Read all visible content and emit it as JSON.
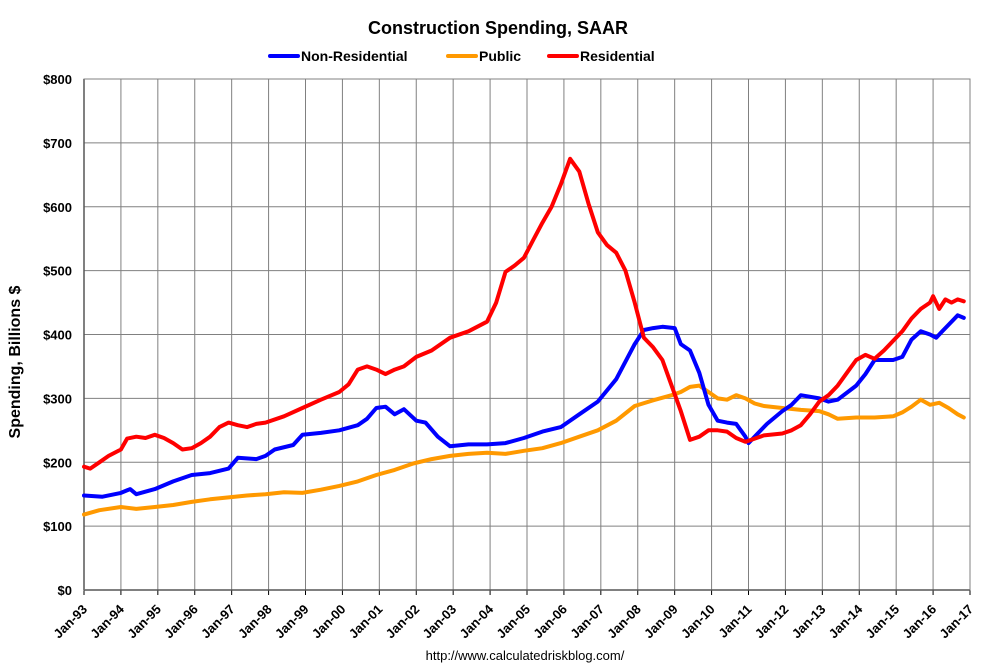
{
  "chart_data": {
    "type": "line",
    "title": "Construction Spending, SAAR",
    "xlabel": "",
    "ylabel": "Spending, Billions $",
    "source": "http://www.calculatedriskblog.com/",
    "x_range": [
      "1993-01",
      "2017-01"
    ],
    "ylim": [
      0,
      800
    ],
    "y_ticks": [
      "$0",
      "$100",
      "$200",
      "$300",
      "$400",
      "$500",
      "$600",
      "$700",
      "$800"
    ],
    "y_tick_values": [
      0,
      100,
      200,
      300,
      400,
      500,
      600,
      700,
      800
    ],
    "x_ticks": [
      "Jan-93",
      "Jan-94",
      "Jan-95",
      "Jan-96",
      "Jan-97",
      "Jan-98",
      "Jan-99",
      "Jan-00",
      "Jan-01",
      "Jan-02",
      "Jan-03",
      "Jan-04",
      "Jan-05",
      "Jan-06",
      "Jan-07",
      "Jan-08",
      "Jan-09",
      "Jan-10",
      "Jan-11",
      "Jan-12",
      "Jan-13",
      "Jan-14",
      "Jan-15",
      "Jan-16",
      "Jan-17"
    ],
    "grid": true,
    "legend": "top-center",
    "series": [
      {
        "name": "Non-Residential",
        "color": "#0000ff",
        "points": [
          [
            "1993-01",
            148
          ],
          [
            "1993-07",
            146
          ],
          [
            "1994-01",
            152
          ],
          [
            "1994-04",
            158
          ],
          [
            "1994-06",
            150
          ],
          [
            "1994-12",
            158
          ],
          [
            "1995-06",
            170
          ],
          [
            "1995-12",
            180
          ],
          [
            "1996-06",
            183
          ],
          [
            "1996-12",
            190
          ],
          [
            "1997-03",
            207
          ],
          [
            "1997-09",
            205
          ],
          [
            "1997-12",
            210
          ],
          [
            "1998-03",
            220
          ],
          [
            "1998-09",
            227
          ],
          [
            "1998-12",
            243
          ],
          [
            "1999-06",
            246
          ],
          [
            "1999-12",
            250
          ],
          [
            "2000-06",
            258
          ],
          [
            "2000-09",
            268
          ],
          [
            "2000-12",
            285
          ],
          [
            "2001-03",
            287
          ],
          [
            "2001-06",
            275
          ],
          [
            "2001-09",
            283
          ],
          [
            "2002-01",
            265
          ],
          [
            "2002-04",
            262
          ],
          [
            "2002-08",
            240
          ],
          [
            "2002-12",
            225
          ],
          [
            "2003-06",
            228
          ],
          [
            "2003-12",
            228
          ],
          [
            "2004-06",
            230
          ],
          [
            "2004-12",
            238
          ],
          [
            "2005-06",
            248
          ],
          [
            "2005-12",
            255
          ],
          [
            "2006-06",
            275
          ],
          [
            "2006-12",
            295
          ],
          [
            "2007-06",
            330
          ],
          [
            "2007-12",
            385
          ],
          [
            "2008-03",
            407
          ],
          [
            "2008-06",
            410
          ],
          [
            "2008-09",
            412
          ],
          [
            "2009-01",
            410
          ],
          [
            "2009-03",
            385
          ],
          [
            "2009-06",
            375
          ],
          [
            "2009-09",
            340
          ],
          [
            "2009-12",
            290
          ],
          [
            "2010-03",
            265
          ],
          [
            "2010-06",
            262
          ],
          [
            "2010-09",
            260
          ],
          [
            "2010-12",
            240
          ],
          [
            "2011-01",
            230
          ],
          [
            "2011-04",
            245
          ],
          [
            "2011-07",
            260
          ],
          [
            "2011-12",
            280
          ],
          [
            "2012-03",
            290
          ],
          [
            "2012-06",
            305
          ],
          [
            "2012-12",
            300
          ],
          [
            "2013-03",
            295
          ],
          [
            "2013-06",
            298
          ],
          [
            "2013-12",
            320
          ],
          [
            "2014-03",
            338
          ],
          [
            "2014-06",
            360
          ],
          [
            "2014-12",
            360
          ],
          [
            "2015-03",
            365
          ],
          [
            "2015-06",
            392
          ],
          [
            "2015-09",
            405
          ],
          [
            "2015-12",
            400
          ],
          [
            "2016-02",
            395
          ],
          [
            "2016-04",
            405
          ],
          [
            "2016-07",
            420
          ],
          [
            "2016-09",
            430
          ],
          [
            "2016-11",
            426
          ]
        ]
      },
      {
        "name": "Public",
        "color": "#ff9900",
        "points": [
          [
            "1993-01",
            118
          ],
          [
            "1993-06",
            125
          ],
          [
            "1994-01",
            130
          ],
          [
            "1994-06",
            127
          ],
          [
            "1994-12",
            130
          ],
          [
            "1995-06",
            133
          ],
          [
            "1995-12",
            138
          ],
          [
            "1996-06",
            142
          ],
          [
            "1996-12",
            145
          ],
          [
            "1997-06",
            148
          ],
          [
            "1997-12",
            150
          ],
          [
            "1998-06",
            153
          ],
          [
            "1998-12",
            152
          ],
          [
            "1999-06",
            157
          ],
          [
            "1999-12",
            163
          ],
          [
            "2000-06",
            170
          ],
          [
            "2000-12",
            180
          ],
          [
            "2001-06",
            188
          ],
          [
            "2001-12",
            198
          ],
          [
            "2002-06",
            205
          ],
          [
            "2002-12",
            210
          ],
          [
            "2003-06",
            213
          ],
          [
            "2003-12",
            215
          ],
          [
            "2004-06",
            213
          ],
          [
            "2004-12",
            218
          ],
          [
            "2005-06",
            222
          ],
          [
            "2005-12",
            230
          ],
          [
            "2006-06",
            240
          ],
          [
            "2006-12",
            250
          ],
          [
            "2007-06",
            265
          ],
          [
            "2007-12",
            288
          ],
          [
            "2008-06",
            297
          ],
          [
            "2008-12",
            305
          ],
          [
            "2009-03",
            310
          ],
          [
            "2009-06",
            318
          ],
          [
            "2009-09",
            320
          ],
          [
            "2009-12",
            310
          ],
          [
            "2010-03",
            300
          ],
          [
            "2010-06",
            298
          ],
          [
            "2010-09",
            305
          ],
          [
            "2010-12",
            300
          ],
          [
            "2011-03",
            292
          ],
          [
            "2011-06",
            288
          ],
          [
            "2011-12",
            285
          ],
          [
            "2012-06",
            282
          ],
          [
            "2012-12",
            280
          ],
          [
            "2013-03",
            275
          ],
          [
            "2013-06",
            268
          ],
          [
            "2013-12",
            270
          ],
          [
            "2014-06",
            270
          ],
          [
            "2014-12",
            272
          ],
          [
            "2015-03",
            278
          ],
          [
            "2015-06",
            287
          ],
          [
            "2015-09",
            298
          ],
          [
            "2015-12",
            290
          ],
          [
            "2016-03",
            293
          ],
          [
            "2016-06",
            285
          ],
          [
            "2016-09",
            275
          ],
          [
            "2016-11",
            270
          ]
        ]
      },
      {
        "name": "Residential",
        "color": "#ff0000",
        "points": [
          [
            "1993-01",
            193
          ],
          [
            "1993-03",
            190
          ],
          [
            "1993-06",
            200
          ],
          [
            "1993-09",
            210
          ],
          [
            "1994-01",
            220
          ],
          [
            "1994-03",
            237
          ],
          [
            "1994-06",
            240
          ],
          [
            "1994-09",
            238
          ],
          [
            "1994-12",
            243
          ],
          [
            "1995-03",
            238
          ],
          [
            "1995-06",
            230
          ],
          [
            "1995-09",
            220
          ],
          [
            "1995-12",
            222
          ],
          [
            "1996-03",
            230
          ],
          [
            "1996-06",
            240
          ],
          [
            "1996-09",
            255
          ],
          [
            "1996-12",
            262
          ],
          [
            "1997-03",
            258
          ],
          [
            "1997-06",
            255
          ],
          [
            "1997-09",
            260
          ],
          [
            "1997-12",
            262
          ],
          [
            "1998-06",
            272
          ],
          [
            "1998-12",
            285
          ],
          [
            "1999-06",
            298
          ],
          [
            "1999-12",
            310
          ],
          [
            "2000-03",
            322
          ],
          [
            "2000-06",
            345
          ],
          [
            "2000-09",
            350
          ],
          [
            "2000-12",
            345
          ],
          [
            "2001-03",
            338
          ],
          [
            "2001-06",
            345
          ],
          [
            "2001-09",
            350
          ],
          [
            "2002-01",
            365
          ],
          [
            "2002-06",
            375
          ],
          [
            "2002-12",
            395
          ],
          [
            "2003-06",
            405
          ],
          [
            "2003-12",
            420
          ],
          [
            "2004-03",
            450
          ],
          [
            "2004-06",
            498
          ],
          [
            "2004-09",
            508
          ],
          [
            "2004-12",
            520
          ],
          [
            "2005-03",
            548
          ],
          [
            "2005-06",
            575
          ],
          [
            "2005-09",
            600
          ],
          [
            "2005-12",
            635
          ],
          [
            "2006-03",
            675
          ],
          [
            "2006-06",
            655
          ],
          [
            "2006-09",
            605
          ],
          [
            "2006-12",
            560
          ],
          [
            "2007-03",
            540
          ],
          [
            "2007-06",
            528
          ],
          [
            "2007-09",
            500
          ],
          [
            "2007-12",
            450
          ],
          [
            "2008-03",
            395
          ],
          [
            "2008-06",
            380
          ],
          [
            "2008-09",
            360
          ],
          [
            "2008-12",
            320
          ],
          [
            "2009-03",
            280
          ],
          [
            "2009-06",
            235
          ],
          [
            "2009-09",
            240
          ],
          [
            "2009-12",
            250
          ],
          [
            "2010-03",
            250
          ],
          [
            "2010-06",
            248
          ],
          [
            "2010-09",
            238
          ],
          [
            "2010-12",
            232
          ],
          [
            "2011-03",
            237
          ],
          [
            "2011-06",
            242
          ],
          [
            "2011-12",
            245
          ],
          [
            "2012-03",
            250
          ],
          [
            "2012-06",
            258
          ],
          [
            "2012-09",
            275
          ],
          [
            "2012-12",
            295
          ],
          [
            "2013-03",
            305
          ],
          [
            "2013-06",
            320
          ],
          [
            "2013-09",
            340
          ],
          [
            "2013-12",
            360
          ],
          [
            "2014-03",
            368
          ],
          [
            "2014-06",
            362
          ],
          [
            "2014-09",
            375
          ],
          [
            "2014-12",
            390
          ],
          [
            "2015-03",
            405
          ],
          [
            "2015-06",
            425
          ],
          [
            "2015-09",
            440
          ],
          [
            "2015-12",
            450
          ],
          [
            "2016-01",
            460
          ],
          [
            "2016-03",
            440
          ],
          [
            "2016-05",
            455
          ],
          [
            "2016-07",
            450
          ],
          [
            "2016-09",
            455
          ],
          [
            "2016-11",
            452
          ]
        ]
      }
    ]
  }
}
